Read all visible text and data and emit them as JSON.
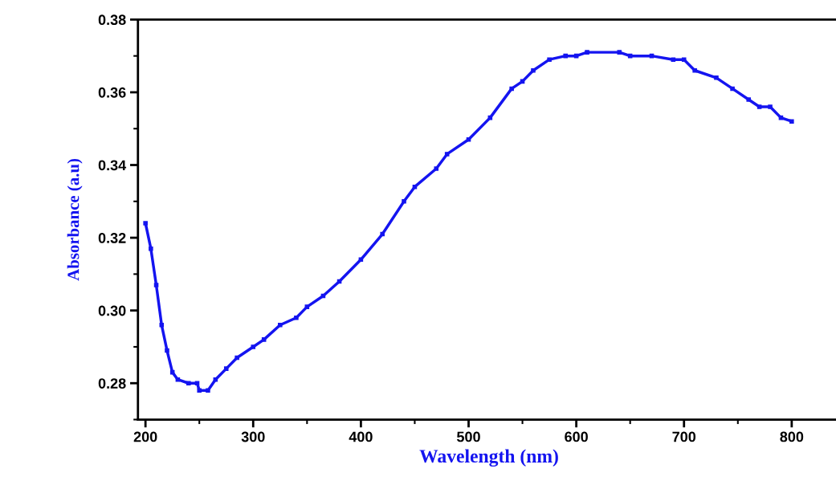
{
  "chart_data": {
    "type": "line",
    "xlabel": "Wavelength (nm)",
    "ylabel": "Absorbance (a.u)",
    "x": [
      200,
      205,
      210,
      215,
      220,
      225,
      230,
      240,
      248,
      250,
      258,
      265,
      275,
      285,
      300,
      310,
      325,
      340,
      350,
      365,
      380,
      400,
      420,
      440,
      450,
      470,
      480,
      500,
      520,
      540,
      550,
      560,
      575,
      590,
      600,
      610,
      640,
      650,
      670,
      690,
      700,
      710,
      730,
      745,
      760,
      770,
      780,
      790,
      800
    ],
    "series": [
      {
        "color": "#1414f0",
        "values": [
          0.324,
          0.317,
          0.307,
          0.296,
          0.289,
          0.283,
          0.281,
          0.28,
          0.28,
          0.278,
          0.278,
          0.281,
          0.284,
          0.287,
          0.29,
          0.292,
          0.296,
          0.298,
          0.301,
          0.304,
          0.308,
          0.314,
          0.321,
          0.33,
          0.334,
          0.339,
          0.343,
          0.347,
          0.353,
          0.361,
          0.363,
          0.366,
          0.369,
          0.37,
          0.37,
          0.371,
          0.371,
          0.37,
          0.37,
          0.369,
          0.369,
          0.366,
          0.364,
          0.361,
          0.358,
          0.356,
          0.356,
          0.353,
          0.352
        ]
      }
    ],
    "xlim": [
      193,
      845
    ],
    "ylim": [
      0.27,
      0.38
    ],
    "xticks": [
      200,
      300,
      400,
      500,
      600,
      700,
      800
    ],
    "yticks": [
      {
        "value": 0.28,
        "label": "0.28"
      },
      {
        "value": 0.3,
        "label": "0.30"
      },
      {
        "value": 0.32,
        "label": "0.32"
      },
      {
        "value": 0.34,
        "label": "0.34"
      },
      {
        "value": 0.36,
        "label": "0.36"
      },
      {
        "value": 0.38,
        "label": "0.38"
      }
    ],
    "marker": "square",
    "line_style": "solid",
    "grid": false,
    "legend": false
  }
}
